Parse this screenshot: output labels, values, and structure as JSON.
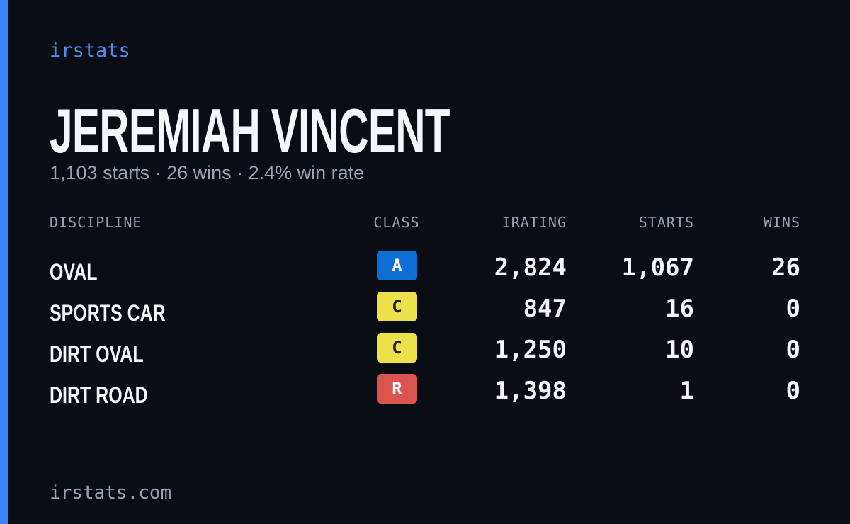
{
  "header": {
    "brand": "irstats"
  },
  "profile": {
    "name": "JEREMIAH VINCENT",
    "summary": "1,103 starts · 26 wins · 2.4% win rate"
  },
  "table": {
    "columns": [
      "DISCIPLINE",
      "CLASS",
      "IRATING",
      "STARTS",
      "WINS"
    ],
    "rows": [
      {
        "discipline": "OVAL",
        "class": "A",
        "class_color": "#0b6fd6",
        "class_text_color": "#ffffff",
        "irating": "2,824",
        "starts": "1,067",
        "wins": "26"
      },
      {
        "discipline": "SPORTS CAR",
        "class": "C",
        "class_color": "#ece04b",
        "class_text_color": "#1d1d1d",
        "irating": "847",
        "starts": "16",
        "wins": "0"
      },
      {
        "discipline": "DIRT OVAL",
        "class": "C",
        "class_color": "#ece04b",
        "class_text_color": "#1d1d1d",
        "irating": "1,250",
        "starts": "10",
        "wins": "0"
      },
      {
        "discipline": "DIRT ROAD",
        "class": "R",
        "class_color": "#d9534f",
        "class_text_color": "#ffffff",
        "irating": "1,398",
        "starts": "1",
        "wins": "0"
      }
    ]
  },
  "footer": {
    "site": "irstats.com"
  }
}
